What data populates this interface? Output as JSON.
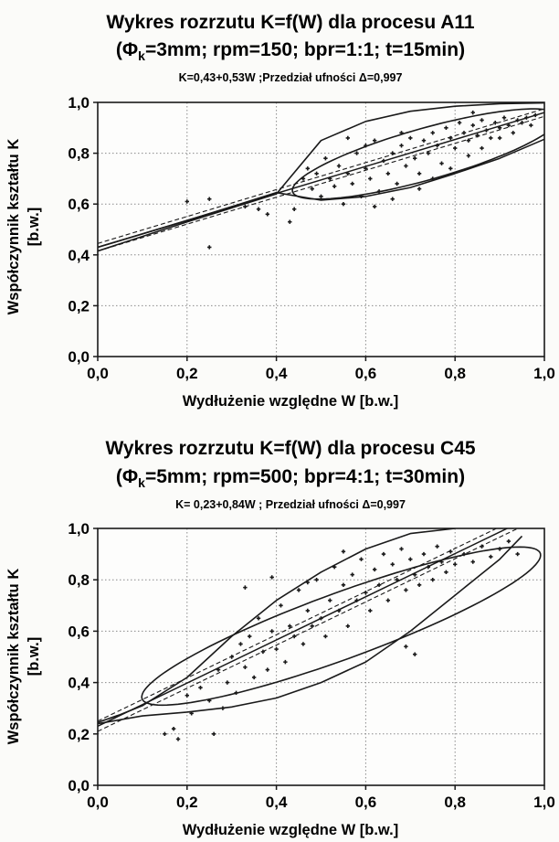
{
  "chart_data": [
    {
      "type": "scatter",
      "title": "Wykres rozrzutu K=f(W) dla procesu A11",
      "subtitle": {
        "prefix": "(Φ",
        "subscript": "k",
        "rest": "=3mm; rpm=150; bpr=1:1; t=15min)"
      },
      "equation": "K=0,43+0,53W ;Przedział ufności Δ=0,997",
      "xlabel": "Wydłużenie względne W [b.w.]",
      "ylabel": "Współczynnik kształtu K",
      "ylabel_unit": "[b.w.]",
      "xlim": [
        0,
        1
      ],
      "ylim": [
        0,
        1
      ],
      "xticks": [
        "0,0",
        "0,2",
        "0,4",
        "0,6",
        "0,8",
        "1,0"
      ],
      "yticks": [
        "0,0",
        "0,2",
        "0,4",
        "0,6",
        "0,8",
        "1,0"
      ],
      "grid": true,
      "regression": {
        "intercept": 0.43,
        "slope": 0.53,
        "band": 0.015
      },
      "ellipse": {
        "cx": 0.735,
        "cy": 0.797,
        "rx": 0.335,
        "ry": 0.094,
        "angle_deg": 27.9
      },
      "outer_curves": {
        "upper": [
          [
            0.0,
            0.415
          ],
          [
            0.2,
            0.53
          ],
          [
            0.4,
            0.64
          ],
          [
            0.5,
            0.85
          ],
          [
            0.6,
            0.925
          ],
          [
            0.7,
            0.965
          ],
          [
            0.8,
            0.985
          ],
          [
            0.9,
            0.995
          ],
          [
            1.0,
            0.998
          ]
        ],
        "lower": [
          [
            0.0,
            0.43
          ],
          [
            0.2,
            0.535
          ],
          [
            0.4,
            0.645
          ],
          [
            0.5,
            0.615
          ],
          [
            0.6,
            0.63
          ],
          [
            0.7,
            0.665
          ],
          [
            0.8,
            0.72
          ],
          [
            0.9,
            0.78
          ],
          [
            1.0,
            0.855
          ]
        ]
      },
      "points": [
        [
          0.2,
          0.61
        ],
        [
          0.25,
          0.62
        ],
        [
          0.25,
          0.43
        ],
        [
          0.33,
          0.59
        ],
        [
          0.36,
          0.58
        ],
        [
          0.38,
          0.56
        ],
        [
          0.43,
          0.53
        ],
        [
          0.44,
          0.58
        ],
        [
          0.46,
          0.7
        ],
        [
          0.47,
          0.74
        ],
        [
          0.48,
          0.66
        ],
        [
          0.49,
          0.72
        ],
        [
          0.5,
          0.63
        ],
        [
          0.51,
          0.78
        ],
        [
          0.52,
          0.7
        ],
        [
          0.53,
          0.67
        ],
        [
          0.54,
          0.75
        ],
        [
          0.55,
          0.6
        ],
        [
          0.56,
          0.72
        ],
        [
          0.57,
          0.68
        ],
        [
          0.58,
          0.8
        ],
        [
          0.59,
          0.63
        ],
        [
          0.6,
          0.74
        ],
        [
          0.61,
          0.7
        ],
        [
          0.62,
          0.85
        ],
        [
          0.63,
          0.65
        ],
        [
          0.64,
          0.77
        ],
        [
          0.65,
          0.72
        ],
        [
          0.66,
          0.8
        ],
        [
          0.67,
          0.68
        ],
        [
          0.68,
          0.83
        ],
        [
          0.69,
          0.75
        ],
        [
          0.7,
          0.86
        ],
        [
          0.71,
          0.78
        ],
        [
          0.72,
          0.72
        ],
        [
          0.73,
          0.85
        ],
        [
          0.74,
          0.8
        ],
        [
          0.75,
          0.88
        ],
        [
          0.76,
          0.83
        ],
        [
          0.77,
          0.76
        ],
        [
          0.78,
          0.9
        ],
        [
          0.79,
          0.86
        ],
        [
          0.8,
          0.82
        ],
        [
          0.81,
          0.92
        ],
        [
          0.82,
          0.88
        ],
        [
          0.83,
          0.85
        ],
        [
          0.84,
          0.91
        ],
        [
          0.85,
          0.87
        ],
        [
          0.86,
          0.93
        ],
        [
          0.87,
          0.89
        ],
        [
          0.88,
          0.86
        ],
        [
          0.89,
          0.92
        ],
        [
          0.9,
          0.9
        ],
        [
          0.91,
          0.94
        ],
        [
          0.92,
          0.91
        ],
        [
          0.93,
          0.88
        ],
        [
          0.94,
          0.93
        ],
        [
          0.95,
          0.92
        ],
        [
          0.96,
          0.94
        ],
        [
          0.97,
          0.91
        ],
        [
          0.98,
          0.95
        ],
        [
          0.83,
          0.79
        ],
        [
          0.79,
          0.74
        ],
        [
          0.72,
          0.66
        ],
        [
          0.66,
          0.62
        ],
        [
          0.62,
          0.59
        ],
        [
          0.68,
          0.88
        ],
        [
          0.6,
          0.83
        ],
        [
          0.56,
          0.86
        ],
        [
          0.86,
          0.82
        ],
        [
          0.9,
          0.86
        ],
        [
          0.75,
          0.7
        ],
        [
          0.84,
          0.96
        ]
      ]
    },
    {
      "type": "scatter",
      "title": "Wykres rozrzutu K=f(W) dla procesu C45",
      "subtitle": {
        "prefix": "(Φ",
        "subscript": "k",
        "rest": "=5mm; rpm=500; bpr=4:1; t=30min)"
      },
      "equation": "K= 0,23+0,84W ; Przedział ufności Δ=0,997",
      "xlabel": "Wydłużenie względne W [b.w.]",
      "ylabel": "Współczynnik kształtu K",
      "ylabel_unit": "[b.w.]",
      "xlim": [
        0,
        1
      ],
      "ylim": [
        0,
        1
      ],
      "xticks": [
        "0,0",
        "0,2",
        "0,4",
        "0,6",
        "0,8",
        "1,0"
      ],
      "yticks": [
        "0,0",
        "0,2",
        "0,4",
        "0,6",
        "0,8",
        "1,0"
      ],
      "grid": true,
      "regression": {
        "intercept": 0.23,
        "slope": 0.84,
        "band": 0.02
      },
      "ellipse": {
        "cx": 0.545,
        "cy": 0.62,
        "rx": 0.53,
        "ry": 0.115,
        "angle_deg": 33.5
      },
      "outer_curves": {
        "upper": [
          [
            0.0,
            0.245
          ],
          [
            0.05,
            0.275
          ],
          [
            0.1,
            0.31
          ],
          [
            0.2,
            0.42
          ],
          [
            0.3,
            0.58
          ],
          [
            0.4,
            0.72
          ],
          [
            0.5,
            0.83
          ],
          [
            0.6,
            0.92
          ],
          [
            0.7,
            0.98
          ],
          [
            0.8,
            1.0
          ]
        ],
        "lower": [
          [
            0.0,
            0.24
          ],
          [
            0.1,
            0.27
          ],
          [
            0.2,
            0.285
          ],
          [
            0.3,
            0.305
          ],
          [
            0.4,
            0.34
          ],
          [
            0.5,
            0.4
          ],
          [
            0.6,
            0.48
          ],
          [
            0.7,
            0.6
          ],
          [
            0.8,
            0.74
          ],
          [
            0.9,
            0.88
          ],
          [
            0.95,
            0.97
          ]
        ]
      },
      "points": [
        [
          0.15,
          0.2
        ],
        [
          0.17,
          0.22
        ],
        [
          0.18,
          0.18
        ],
        [
          0.2,
          0.35
        ],
        [
          0.21,
          0.28
        ],
        [
          0.23,
          0.38
        ],
        [
          0.25,
          0.33
        ],
        [
          0.26,
          0.2
        ],
        [
          0.27,
          0.45
        ],
        [
          0.28,
          0.3
        ],
        [
          0.29,
          0.4
        ],
        [
          0.3,
          0.5
        ],
        [
          0.31,
          0.36
        ],
        [
          0.32,
          0.55
        ],
        [
          0.33,
          0.46
        ],
        [
          0.34,
          0.58
        ],
        [
          0.35,
          0.42
        ],
        [
          0.36,
          0.65
        ],
        [
          0.37,
          0.52
        ],
        [
          0.38,
          0.45
        ],
        [
          0.39,
          0.6
        ],
        [
          0.4,
          0.53
        ],
        [
          0.41,
          0.7
        ],
        [
          0.42,
          0.48
        ],
        [
          0.43,
          0.62
        ],
        [
          0.44,
          0.58
        ],
        [
          0.45,
          0.76
        ],
        [
          0.46,
          0.55
        ],
        [
          0.47,
          0.68
        ],
        [
          0.48,
          0.62
        ],
        [
          0.49,
          0.8
        ],
        [
          0.5,
          0.65
        ],
        [
          0.51,
          0.58
        ],
        [
          0.52,
          0.72
        ],
        [
          0.53,
          0.85
        ],
        [
          0.54,
          0.68
        ],
        [
          0.55,
          0.78
        ],
        [
          0.56,
          0.62
        ],
        [
          0.57,
          0.82
        ],
        [
          0.58,
          0.72
        ],
        [
          0.59,
          0.88
        ],
        [
          0.6,
          0.75
        ],
        [
          0.61,
          0.68
        ],
        [
          0.62,
          0.84
        ],
        [
          0.63,
          0.78
        ],
        [
          0.64,
          0.9
        ],
        [
          0.65,
          0.72
        ],
        [
          0.66,
          0.86
        ],
        [
          0.67,
          0.8
        ],
        [
          0.68,
          0.92
        ],
        [
          0.69,
          0.76
        ],
        [
          0.7,
          0.88
        ],
        [
          0.71,
          0.82
        ],
        [
          0.72,
          0.78
        ],
        [
          0.73,
          0.9
        ],
        [
          0.74,
          0.85
        ],
        [
          0.75,
          0.8
        ],
        [
          0.76,
          0.93
        ],
        [
          0.77,
          0.87
        ],
        [
          0.78,
          0.83
        ],
        [
          0.79,
          0.91
        ],
        [
          0.8,
          0.86
        ],
        [
          0.82,
          0.9
        ],
        [
          0.84,
          0.87
        ],
        [
          0.86,
          0.93
        ],
        [
          0.88,
          0.89
        ],
        [
          0.9,
          0.92
        ],
        [
          0.92,
          0.95
        ],
        [
          0.94,
          0.9
        ],
        [
          0.33,
          0.77
        ],
        [
          0.39,
          0.81
        ],
        [
          0.71,
          0.51
        ],
        [
          0.69,
          0.54
        ],
        [
          0.47,
          0.79
        ],
        [
          0.55,
          0.91
        ]
      ]
    }
  ]
}
